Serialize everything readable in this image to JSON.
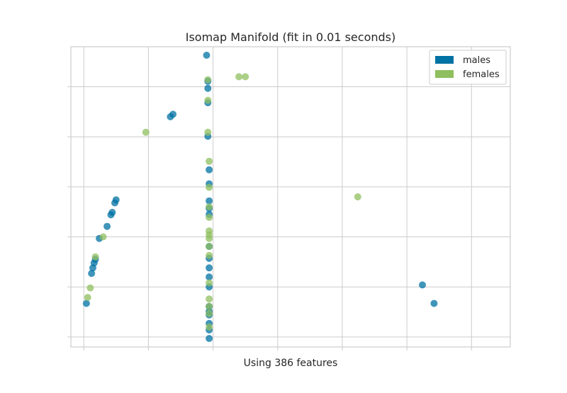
{
  "chart_data": {
    "type": "scatter",
    "title": "Isomap Manifold (fit in 0.01 seconds)",
    "xlabel": "Using 386 features",
    "ylabel": "",
    "xlim": [
      -0.85,
      2.55
    ],
    "ylim": [
      -3.2,
      2.8
    ],
    "xticks": [
      -0.75,
      -0.25,
      0.25,
      0.75,
      1.25,
      1.75,
      2.25
    ],
    "yticks": [
      -3.0,
      -2.0,
      -1.0,
      0.0,
      1.0,
      2.0
    ],
    "grid": true,
    "legend": {
      "placement": "top-right"
    },
    "tick_labels_visible": false,
    "series": [
      {
        "name": "males",
        "color": "#0072a3",
        "points": [
          [
            0.2,
            2.63
          ],
          [
            0.21,
            2.11
          ],
          [
            0.21,
            1.97
          ],
          [
            0.21,
            1.68
          ],
          [
            -0.06,
            1.45
          ],
          [
            -0.08,
            1.4
          ],
          [
            0.21,
            1.01
          ],
          [
            0.22,
            0.34
          ],
          [
            0.22,
            0.06
          ],
          [
            -0.5,
            -0.26
          ],
          [
            -0.51,
            -0.32
          ],
          [
            -0.53,
            -0.51
          ],
          [
            -0.54,
            -0.56
          ],
          [
            -0.57,
            -0.79
          ],
          [
            -0.63,
            -1.03
          ],
          [
            0.22,
            -0.28
          ],
          [
            0.22,
            -0.43
          ],
          [
            0.22,
            -0.55
          ],
          [
            0.22,
            -1.19
          ],
          [
            0.22,
            -1.43
          ],
          [
            0.22,
            -1.62
          ],
          [
            0.22,
            -1.8
          ],
          [
            -0.66,
            -1.45
          ],
          [
            -0.67,
            -1.52
          ],
          [
            -0.68,
            -1.62
          ],
          [
            -0.69,
            -1.73
          ],
          [
            0.22,
            -2.0
          ],
          [
            0.22,
            -2.39
          ],
          [
            0.22,
            -2.49
          ],
          [
            0.22,
            -2.56
          ],
          [
            0.22,
            -2.73
          ],
          [
            0.22,
            -2.86
          ],
          [
            0.22,
            -3.03
          ],
          [
            -0.73,
            -2.33
          ],
          [
            1.87,
            -1.96
          ],
          [
            1.96,
            -2.33
          ]
        ]
      },
      {
        "name": "females",
        "color": "#8fbf5f",
        "points": [
          [
            0.21,
            2.14
          ],
          [
            0.45,
            2.2
          ],
          [
            0.5,
            2.2
          ],
          [
            0.21,
            1.73
          ],
          [
            -0.27,
            1.09
          ],
          [
            0.21,
            1.09
          ],
          [
            0.22,
            0.51
          ],
          [
            0.22,
            -0.01
          ],
          [
            1.37,
            -0.2
          ],
          [
            0.22,
            -0.4
          ],
          [
            0.22,
            -0.61
          ],
          [
            -0.6,
            -1.0
          ],
          [
            0.22,
            -0.88
          ],
          [
            0.22,
            -0.96
          ],
          [
            0.22,
            -1.03
          ],
          [
            0.22,
            -1.19
          ],
          [
            0.22,
            -1.37
          ],
          [
            -0.66,
            -1.4
          ],
          [
            0.22,
            -1.92
          ],
          [
            -0.7,
            -2.02
          ],
          [
            0.22,
            -2.24
          ],
          [
            -0.72,
            -2.21
          ],
          [
            0.22,
            -2.39
          ],
          [
            0.22,
            -2.53
          ],
          [
            0.22,
            -2.8
          ]
        ]
      }
    ]
  }
}
